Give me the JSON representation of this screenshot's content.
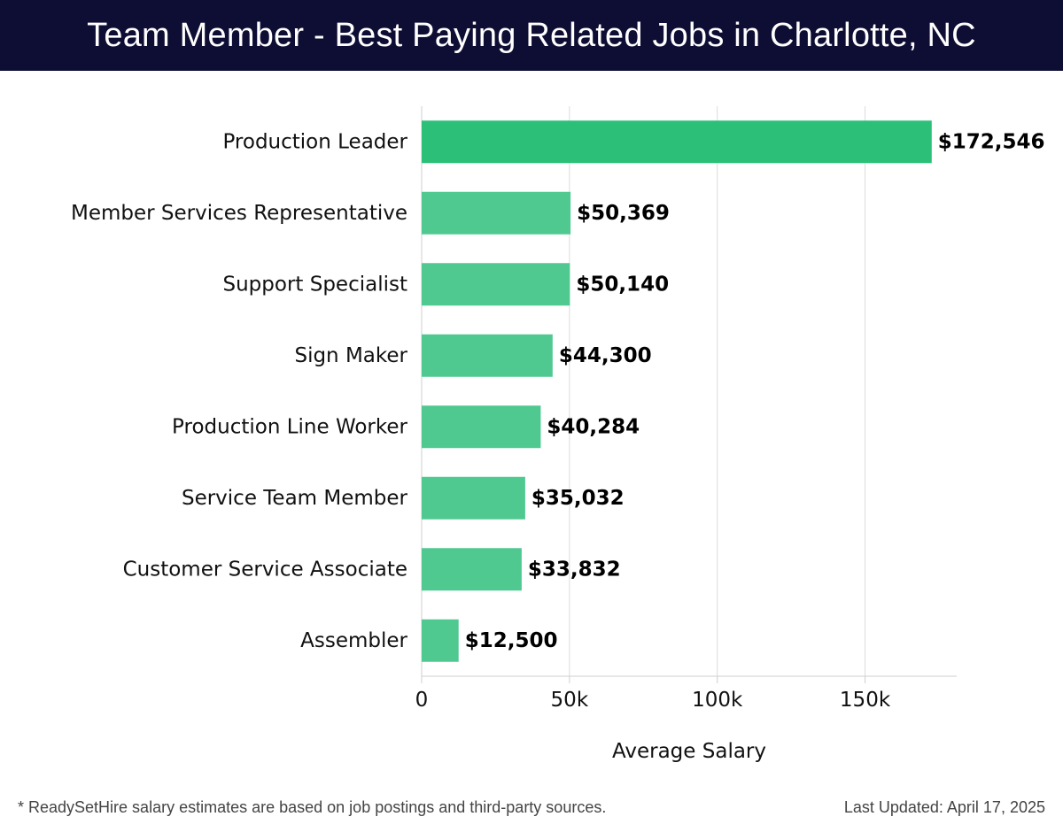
{
  "header": {
    "title": "Team Member - Best Paying Related Jobs in Charlotte, NC"
  },
  "footer": {
    "note": "* ReadySetHire salary estimates are based on job postings and third-party sources.",
    "updated": "Last Updated: April 17, 2025"
  },
  "colors": {
    "header_bg": "#0e0d34",
    "top_bar": "#2bbf78",
    "bar": "#50c991"
  },
  "chart_data": {
    "type": "bar",
    "orientation": "horizontal",
    "title": "Team Member - Best Paying Related Jobs in Charlotte, NC",
    "xlabel": "Average Salary",
    "ylabel": "",
    "xlim": [
      0,
      181000
    ],
    "xticks": [
      0,
      50000,
      100000,
      150000
    ],
    "xtick_labels": [
      "0",
      "50k",
      "100k",
      "150k"
    ],
    "grid": "vertical",
    "categories": [
      "Production Leader",
      "Member Services Representative",
      "Support Specialist",
      "Sign Maker",
      "Production Line Worker",
      "Service Team Member",
      "Customer Service Associate",
      "Assembler"
    ],
    "values": [
      172546,
      50369,
      50140,
      44300,
      40284,
      35032,
      33832,
      12500
    ],
    "value_labels": [
      "$172,546",
      "$50,369",
      "$50,140",
      "$44,300",
      "$40,284",
      "$35,032",
      "$33,832",
      "$12,500"
    ]
  }
}
